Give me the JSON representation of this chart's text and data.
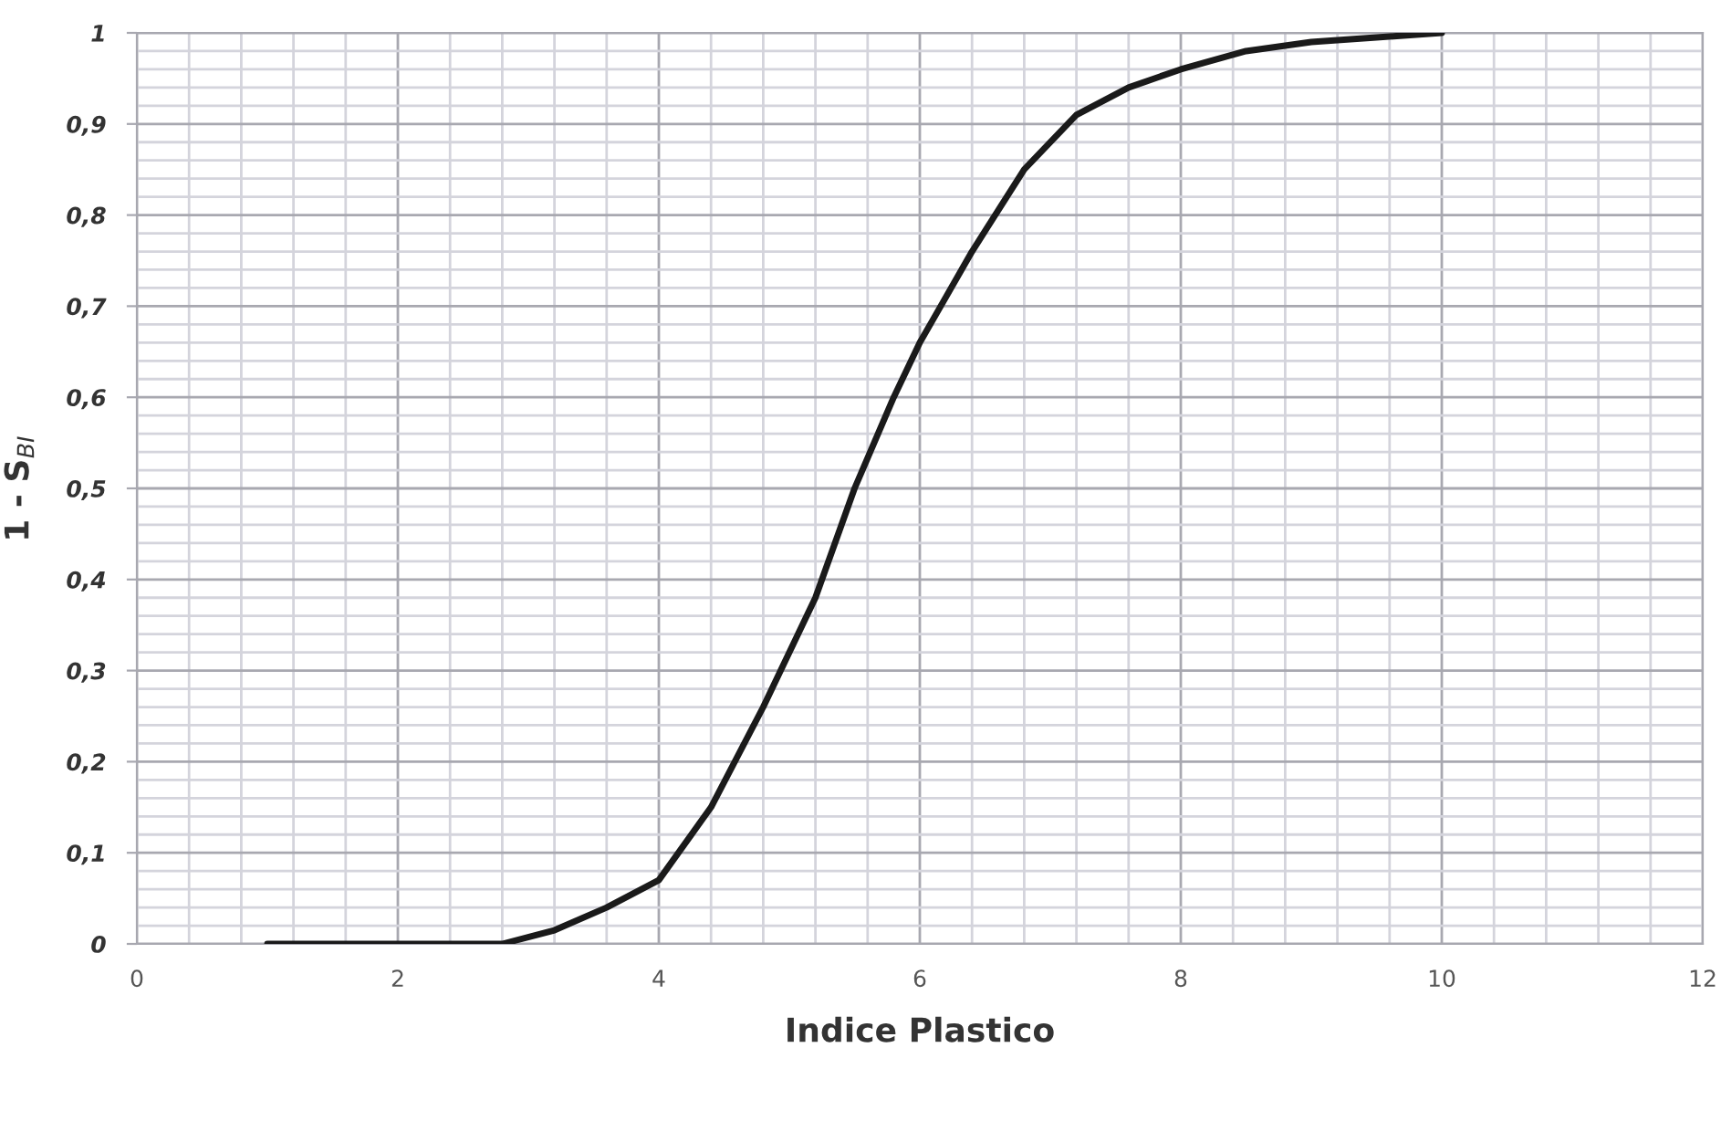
{
  "chart_data": {
    "type": "line",
    "xlabel": "Indice Plastico",
    "ylabel": "1 - S$_{BI}$",
    "x": [
      1,
      2,
      2.8,
      3.2,
      3.6,
      4,
      4.4,
      4.8,
      5.2,
      5.5,
      5.8,
      6,
      6.4,
      6.8,
      7.2,
      7.6,
      8,
      8.5,
      9,
      9.5,
      10
    ],
    "series": [
      {
        "color": "#1a1a1a",
        "values": [
          0,
          0,
          0,
          0.015,
          0.04,
          0.07,
          0.15,
          0.26,
          0.38,
          0.5,
          0.6,
          0.66,
          0.76,
          0.85,
          0.91,
          0.94,
          0.96,
          0.98,
          0.99,
          0.995,
          1
        ]
      }
    ],
    "xlim": [
      0,
      12
    ],
    "xticks": [
      0,
      2,
      4,
      6,
      8,
      10,
      12
    ],
    "ylim": [
      0,
      1
    ],
    "yticks": [
      0,
      {
        "value": 0.1,
        "label": "0,1"
      },
      {
        "value": 0.2,
        "label": "0,2"
      },
      {
        "value": 0.3,
        "label": "0,3"
      },
      {
        "value": 0.4,
        "label": "0,4"
      },
      {
        "value": 0.5,
        "label": "0,5"
      },
      {
        "value": 0.6,
        "label": "0,6"
      },
      {
        "value": 0.7,
        "label": "0,7"
      },
      {
        "value": 0.8,
        "label": "0,8"
      },
      {
        "value": 0.9,
        "label": "0,9"
      },
      1
    ],
    "grid": true,
    "marker": "none",
    "line_style": "solid"
  }
}
